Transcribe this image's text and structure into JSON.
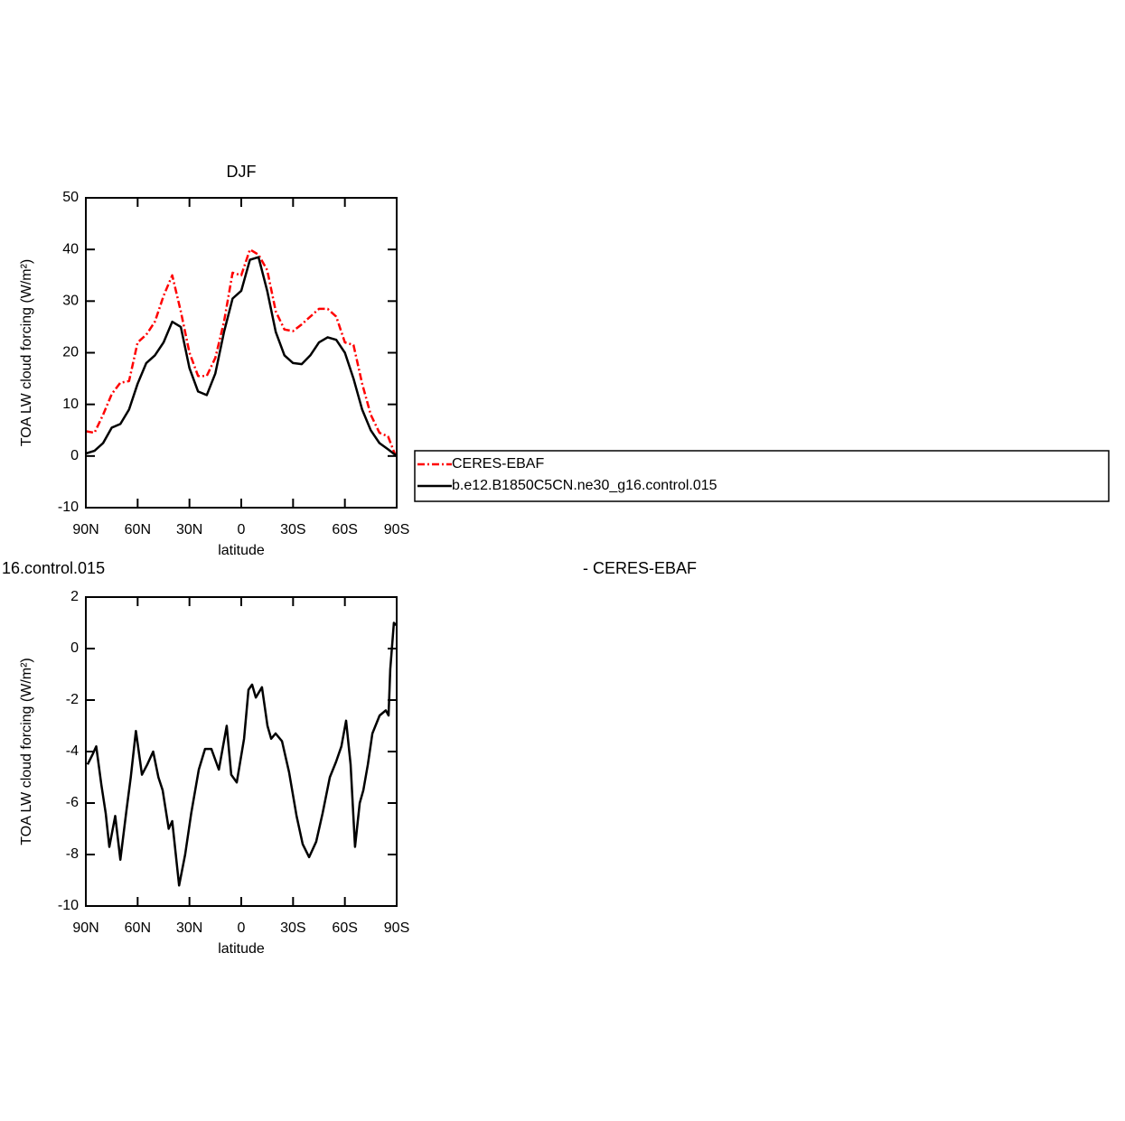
{
  "chart_data": [
    {
      "type": "line",
      "title": "DJF",
      "xlabel": "latitude",
      "ylabel": "TOA LW cloud forcing (W/m²)",
      "x": [
        90,
        85,
        80,
        75,
        70,
        65,
        60,
        55,
        50,
        45,
        40,
        35,
        30,
        25,
        20,
        15,
        10,
        5,
        0,
        -5,
        -10,
        -15,
        -20,
        -25,
        -30,
        -35,
        -40,
        -45,
        -50,
        -55,
        -60,
        -65,
        -70,
        -75,
        -80,
        -85,
        -90
      ],
      "series": [
        {
          "name": "CERES-EBAF",
          "color": "#ff0000",
          "dashed": true,
          "values": [
            4.8,
            4.5,
            8,
            12,
            14.2,
            14.5,
            22,
            23.5,
            26,
            31,
            35,
            28,
            20,
            15.5,
            15.5,
            19,
            26,
            35.5,
            35,
            40,
            39,
            36,
            28,
            24.5,
            24.2,
            25.5,
            27,
            28.5,
            28.5,
            27,
            22,
            21.5,
            14,
            8,
            4.5,
            3.8,
            -0.5
          ]
        },
        {
          "name": "b.e12.B1850C5CN.ne30_g16.control.015",
          "color": "#000000",
          "values": [
            0.5,
            1,
            2.5,
            5.5,
            6.2,
            9,
            14,
            18,
            19.5,
            22,
            26,
            25,
            17,
            12.5,
            11.8,
            16,
            24,
            30.5,
            32,
            38,
            38.5,
            32,
            24,
            19.5,
            18,
            17.8,
            19.5,
            22,
            23,
            22.5,
            20,
            15,
            9,
            5,
            2.5,
            1.3,
            0
          ]
        }
      ],
      "xlim": [
        90,
        -90
      ],
      "xticks": [
        {
          "value": 90,
          "label": "90N"
        },
        {
          "value": 60,
          "label": "60N"
        },
        {
          "value": 30,
          "label": "30N"
        },
        0,
        {
          "value": -30,
          "label": "30S"
        },
        {
          "value": -60,
          "label": "60S"
        },
        {
          "value": -90,
          "label": "90S"
        }
      ],
      "ylim": [
        -10,
        50
      ],
      "yticks": [
        -10,
        0,
        10,
        20,
        30,
        40,
        50
      ],
      "legend": "right"
    },
    {
      "type": "line",
      "title_parts": [
        "16.control.015",
        "- CERES-EBAF"
      ],
      "xlabel": "latitude",
      "ylabel": "TOA LW cloud forcing (W/m²)",
      "x": [
        89,
        86,
        84,
        81,
        78.5,
        76.4,
        73,
        70,
        66.5,
        64,
        61,
        57.5,
        54.4,
        51,
        48,
        45.5,
        42,
        40,
        36,
        32.5,
        29,
        24.6,
        21,
        17.3,
        13,
        8.4,
        5.8,
        2.6,
        -1.6,
        -4.2,
        -6.3,
        -8.4,
        -12,
        -15.2,
        -17.3,
        -19.9,
        -23.6,
        -27.7,
        -32,
        -35.6,
        -39.3,
        -43.4,
        -47.1,
        -51.3,
        -54.9,
        -58,
        -60.7,
        -63.3,
        -65.9,
        -68.6,
        -70.7,
        -73.3,
        -75.9,
        -80.1,
        -83.7,
        -85.3,
        -86.3,
        -88.4,
        -90
      ],
      "color": "#000000",
      "values": [
        -4.5,
        -4.1,
        -3.8,
        -5.3,
        -6.4,
        -7.7,
        -6.5,
        -8.2,
        -6.3,
        -5,
        -3.2,
        -4.9,
        -4.5,
        -4,
        -5,
        -5.5,
        -7,
        -6.7,
        -9.2,
        -8,
        -6.4,
        -4.7,
        -3.9,
        -3.9,
        -4.7,
        -3,
        -4.9,
        -5.2,
        -3.5,
        -1.6,
        -1.4,
        -1.9,
        -1.5,
        -3,
        -3.5,
        -3.3,
        -3.6,
        -4.8,
        -6.5,
        -7.6,
        -8.1,
        -7.5,
        -6.4,
        -5,
        -4.4,
        -3.8,
        -2.8,
        -4.5,
        -7.7,
        -6,
        -5.5,
        -4.5,
        -3.3,
        -2.6,
        -2.4,
        -2.6,
        -0.8,
        1,
        0.9
      ],
      "xlim": [
        90,
        -90
      ],
      "xticks": [
        {
          "value": 90,
          "label": "90N"
        },
        {
          "value": 60,
          "label": "60N"
        },
        {
          "value": 30,
          "label": "30N"
        },
        0,
        {
          "value": -30,
          "label": "30S"
        },
        {
          "value": -60,
          "label": "60S"
        },
        {
          "value": -90,
          "label": "90S"
        }
      ],
      "ylim": [
        -10,
        2
      ],
      "yticks": [
        -10,
        -8,
        -6,
        -4,
        -2,
        0,
        2
      ]
    }
  ]
}
